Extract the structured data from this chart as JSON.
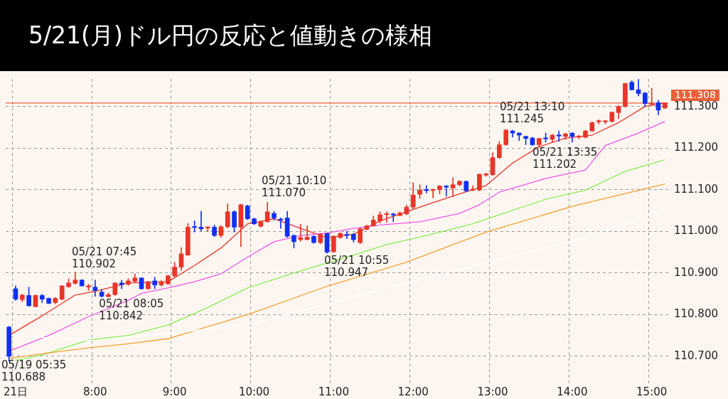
{
  "chart_data": {
    "type": "candlestick",
    "title": "5/21(月)ドル円の反応と値動きの様相",
    "categories": [
      null,
      "21日",
      null,
      null,
      null,
      null,
      null,
      null,
      null,
      null,
      null,
      null,
      null,
      "8:00",
      null,
      null,
      null,
      null,
      null,
      null,
      null,
      null,
      null,
      null,
      null,
      "9:00",
      null,
      null,
      null,
      null,
      null,
      null,
      null,
      null,
      null,
      null,
      null,
      "10:00",
      null,
      null,
      null,
      null,
      null,
      null,
      null,
      null,
      null,
      null,
      null,
      "11:00",
      null,
      null,
      null,
      null,
      null,
      null,
      null,
      null,
      null,
      null,
      null,
      "12:00",
      null,
      null,
      null,
      null,
      null,
      null,
      null,
      null,
      null,
      null,
      null,
      "13:00",
      null,
      null,
      null,
      null,
      null,
      null,
      null,
      null,
      null,
      null,
      null,
      "14:00",
      null,
      null,
      null,
      null,
      null,
      null,
      null,
      null,
      null,
      null,
      null,
      "15:00",
      null,
      null
    ],
    "ohlc": [
      [
        110.77,
        110.772,
        110.688,
        110.7
      ],
      [
        110.862,
        110.869,
        110.834,
        110.837
      ],
      [
        110.836,
        110.849,
        110.831,
        110.847
      ],
      [
        110.846,
        110.866,
        110.82,
        110.821
      ],
      [
        110.819,
        110.848,
        110.818,
        110.846
      ],
      [
        110.846,
        110.849,
        110.829,
        110.837
      ],
      [
        110.839,
        110.84,
        110.826,
        110.827
      ],
      [
        110.829,
        110.841,
        110.826,
        110.839
      ],
      [
        110.837,
        110.87,
        110.835,
        110.869
      ],
      [
        110.867,
        110.886,
        110.865,
        110.876
      ],
      [
        110.875,
        110.902,
        110.873,
        110.883
      ],
      [
        110.883,
        110.884,
        110.868,
        110.869
      ],
      [
        110.866,
        110.873,
        110.858,
        110.869
      ],
      [
        110.866,
        110.883,
        110.844,
        110.858
      ],
      [
        110.854,
        110.86,
        110.842,
        110.844
      ],
      [
        110.843,
        110.852,
        110.843,
        110.848
      ],
      [
        110.848,
        110.877,
        110.846,
        110.876
      ],
      [
        110.876,
        110.883,
        110.862,
        110.872
      ],
      [
        110.873,
        110.886,
        110.87,
        110.881
      ],
      [
        110.88,
        110.898,
        110.878,
        110.888
      ],
      [
        110.888,
        110.889,
        110.861,
        110.862
      ],
      [
        110.862,
        110.88,
        110.86,
        110.879
      ],
      [
        110.881,
        110.89,
        110.862,
        110.871
      ],
      [
        110.871,
        110.882,
        110.868,
        110.879
      ],
      [
        110.874,
        110.895,
        110.872,
        110.893
      ],
      [
        110.893,
        110.926,
        110.89,
        110.914
      ],
      [
        110.914,
        110.961,
        110.906,
        110.946
      ],
      [
        110.943,
        111.019,
        110.942,
        111.01
      ],
      [
        111.011,
        111.025,
        110.998,
        111.009
      ],
      [
        111.01,
        111.048,
        111.0,
        111.006
      ],
      [
        111.008,
        111.011,
        110.999,
        111.01
      ],
      [
        111.01,
        111.015,
        110.987,
        110.99
      ],
      [
        110.99,
        111.014,
        110.985,
        111.011
      ],
      [
        111.011,
        111.066,
        111.008,
        111.047
      ],
      [
        111.047,
        111.05,
        110.998,
        111.01
      ],
      [
        111.01,
        111.065,
        110.963,
        111.064
      ],
      [
        111.061,
        111.063,
        111.028,
        111.03
      ],
      [
        111.03,
        111.032,
        111.016,
        111.018
      ],
      [
        111.012,
        111.025,
        111.01,
        111.023
      ],
      [
        111.023,
        111.07,
        111.022,
        111.047
      ],
      [
        111.043,
        111.048,
        111.027,
        111.032
      ],
      [
        111.029,
        111.032,
        111.007,
        111.027
      ],
      [
        111.032,
        111.048,
        110.985,
        110.988
      ],
      [
        110.99,
        110.992,
        110.96,
        110.975
      ],
      [
        110.98,
        111.017,
        110.976,
        110.985
      ],
      [
        110.98,
        111.013,
        110.979,
        110.986
      ],
      [
        110.988,
        110.99,
        110.971,
        110.973
      ],
      [
        110.973,
        110.995,
        110.97,
        110.993
      ],
      [
        110.995,
        110.996,
        110.947,
        110.95
      ],
      [
        110.951,
        110.99,
        110.949,
        110.988
      ],
      [
        110.985,
        110.997,
        110.983,
        110.995
      ],
      [
        110.992,
        111.0,
        110.982,
        110.99
      ],
      [
        110.993,
        110.995,
        110.974,
        110.98
      ],
      [
        110.973,
        111.008,
        110.97,
        111.006
      ],
      [
        111.005,
        111.015,
        111.003,
        111.013
      ],
      [
        111.013,
        111.037,
        111.012,
        111.027
      ],
      [
        111.025,
        111.047,
        111.02,
        111.04
      ],
      [
        111.04,
        111.047,
        111.022,
        111.042
      ],
      [
        111.041,
        111.044,
        111.023,
        111.039
      ],
      [
        111.038,
        111.047,
        111.037,
        111.044
      ],
      [
        111.042,
        111.063,
        111.04,
        111.058
      ],
      [
        111.058,
        111.117,
        111.053,
        111.087
      ],
      [
        111.089,
        111.112,
        111.079,
        111.099
      ],
      [
        111.1,
        111.11,
        111.092,
        111.098
      ],
      [
        111.098,
        111.102,
        111.08,
        111.1
      ],
      [
        111.1,
        111.11,
        111.09,
        111.109
      ],
      [
        111.109,
        111.11,
        111.084,
        111.106
      ],
      [
        111.104,
        111.129,
        111.084,
        111.112
      ],
      [
        111.112,
        111.122,
        111.109,
        111.12
      ],
      [
        111.12,
        111.121,
        111.095,
        111.097
      ],
      [
        111.099,
        111.109,
        111.097,
        111.101
      ],
      [
        111.099,
        111.138,
        111.097,
        111.137
      ],
      [
        111.135,
        111.14,
        111.132,
        111.138
      ],
      [
        111.136,
        111.189,
        111.134,
        111.177
      ],
      [
        111.177,
        111.216,
        111.175,
        111.208
      ],
      [
        111.208,
        111.245,
        111.206,
        111.243
      ],
      [
        111.241,
        111.243,
        111.226,
        111.236
      ],
      [
        111.236,
        111.237,
        111.218,
        111.231
      ],
      [
        111.228,
        111.229,
        111.208,
        111.223
      ],
      [
        111.224,
        111.226,
        111.206,
        111.208
      ],
      [
        111.208,
        111.224,
        111.202,
        111.223
      ],
      [
        111.223,
        111.236,
        111.214,
        111.222
      ],
      [
        111.221,
        111.233,
        111.214,
        111.231
      ],
      [
        111.23,
        111.241,
        111.216,
        111.229
      ],
      [
        111.228,
        111.236,
        111.22,
        111.234
      ],
      [
        111.236,
        111.237,
        111.214,
        111.228
      ],
      [
        111.226,
        111.231,
        111.222,
        111.227
      ],
      [
        111.226,
        111.243,
        111.224,
        111.241
      ],
      [
        111.241,
        111.263,
        111.24,
        111.261
      ],
      [
        111.263,
        111.268,
        111.258,
        111.264
      ],
      [
        111.263,
        111.266,
        111.258,
        111.265
      ],
      [
        111.264,
        111.287,
        111.262,
        111.286
      ],
      [
        111.285,
        111.302,
        111.27,
        111.3
      ],
      [
        111.3,
        111.356,
        111.298,
        111.355
      ],
      [
        111.358,
        111.362,
        111.339,
        111.34
      ],
      [
        111.34,
        111.365,
        111.325,
        111.331
      ],
      [
        111.332,
        111.334,
        111.3,
        111.307
      ],
      [
        111.305,
        111.344,
        111.304,
        111.307
      ],
      [
        111.309,
        111.315,
        111.28,
        111.291
      ],
      [
        111.296,
        111.309,
        111.295,
        111.308
      ]
    ],
    "colors": [
      "#1030f0",
      "#1030f0",
      "#e8352a",
      "#1030f0",
      "#e8352a",
      "#1030f0",
      "#1030f0",
      "#e8352a",
      "#e8352a",
      "#e8352a",
      "#e8352a",
      "#1030f0",
      "#e8352a",
      "#1030f0",
      "#1030f0",
      "#e8352a",
      "#e8352a",
      "#1030f0",
      "#e8352a",
      "#e8352a",
      "#1030f0",
      "#e8352a",
      "#1030f0",
      "#e8352a",
      "#e8352a",
      "#e8352a",
      "#e8352a",
      "#e8352a",
      "#1030f0",
      "#1030f0",
      "#e8352a",
      "#1030f0",
      "#e8352a",
      "#e8352a",
      "#1030f0",
      "#e8352a",
      "#1030f0",
      "#1030f0",
      "#e8352a",
      "#e8352a",
      "#1030f0",
      "#1030f0",
      "#1030f0",
      "#1030f0",
      "#e8352a",
      "#e8352a",
      "#1030f0",
      "#e8352a",
      "#1030f0",
      "#e8352a",
      "#e8352a",
      "#1030f0",
      "#1030f0",
      "#e8352a",
      "#e8352a",
      "#e8352a",
      "#e8352a",
      "#e8352a",
      "#1030f0",
      "#e8352a",
      "#e8352a",
      "#e8352a",
      "#e8352a",
      "#1030f0",
      "#e8352a",
      "#e8352a",
      "#1030f0",
      "#e8352a",
      "#e8352a",
      "#1030f0",
      "#e8352a",
      "#e8352a",
      "#e8352a",
      "#e8352a",
      "#e8352a",
      "#e8352a",
      "#1030f0",
      "#1030f0",
      "#1030f0",
      "#1030f0",
      "#e8352a",
      "#1030f0",
      "#e8352a",
      "#1030f0",
      "#e8352a",
      "#1030f0",
      "#e8352a",
      "#e8352a",
      "#e8352a",
      "#e8352a",
      "#e8352a",
      "#e8352a",
      "#e8352a",
      "#e8352a",
      "#1030f0",
      "#1030f0",
      "#1030f0",
      "#e8352a",
      "#1030f0",
      "#e8352a"
    ],
    "series": [
      {
        "type": "line",
        "color": "#ffffff",
        "values": [
          110.75,
          null,
          null,
          null,
          null,
          null,
          null,
          null,
          null,
          null,
          null,
          null,
          null,
          110.737,
          null,
          null,
          null,
          null,
          null,
          null,
          null,
          null,
          null,
          null,
          null,
          null,
          null,
          null,
          null,
          null,
          null,
          null,
          null,
          null,
          null,
          null,
          110.775,
          null,
          null,
          null,
          null,
          null,
          null,
          null,
          null,
          null,
          null,
          null,
          null,
          null,
          null,
          null,
          null,
          null,
          null,
          null,
          null,
          null,
          null,
          null,
          110.876,
          null,
          null,
          null,
          null,
          null,
          null,
          null,
          null,
          null,
          null,
          null,
          null,
          null,
          null,
          null,
          null,
          null,
          null,
          null,
          null,
          null,
          null,
          null,
          null,
          110.976,
          null,
          null,
          null,
          null,
          null,
          null,
          null,
          null,
          null,
          null,
          null,
          null,
          null,
          111.052
        ]
      },
      {
        "type": "line",
        "color": "#f5a030",
        "values": [
          110.695,
          null,
          null,
          null,
          null,
          null,
          110.708,
          null,
          null,
          null,
          null,
          null,
          110.72,
          null,
          null,
          null,
          null,
          null,
          110.73,
          null,
          null,
          null,
          null,
          null,
          110.742,
          null,
          null,
          null,
          null,
          null,
          null,
          null,
          null,
          null,
          null,
          null,
          110.8,
          null,
          null,
          null,
          null,
          null,
          null,
          null,
          null,
          null,
          null,
          null,
          110.868,
          null,
          null,
          null,
          null,
          null,
          null,
          null,
          null,
          null,
          null,
          null,
          110.926,
          null,
          null,
          null,
          null,
          null,
          null,
          null,
          null,
          null,
          null,
          null,
          110.998,
          null,
          null,
          null,
          null,
          null,
          null,
          null,
          null,
          null,
          null,
          null,
          null,
          111.06,
          null,
          null,
          null,
          null,
          null,
          null,
          null,
          null,
          null,
          null,
          null,
          null,
          null,
          111.114
        ]
      },
      {
        "type": "line",
        "color": "#88ee55",
        "values": [
          null,
          110.69,
          null,
          null,
          null,
          110.703,
          null,
          null,
          null,
          null,
          null,
          null,
          110.739,
          null,
          null,
          null,
          null,
          null,
          110.75,
          null,
          null,
          null,
          null,
          null,
          110.775,
          null,
          null,
          null,
          null,
          null,
          110.817,
          null,
          null,
          null,
          null,
          null,
          110.864,
          null,
          null,
          null,
          null,
          null,
          null,
          null,
          110.905,
          null,
          null,
          null,
          null,
          null,
          null,
          null,
          110.943,
          null,
          null,
          null,
          null,
          110.968,
          null,
          null,
          null,
          null,
          null,
          110.99,
          null,
          null,
          null,
          null,
          null,
          null,
          111.018,
          null,
          null,
          null,
          111.04,
          null,
          null,
          null,
          null,
          null,
          null,
          111.077,
          null,
          null,
          null,
          null,
          null,
          111.099,
          null,
          null,
          null,
          null,
          null,
          111.144,
          null,
          null,
          null,
          null,
          null,
          111.172
        ]
      },
      {
        "type": "line",
        "color": "#ee55ee",
        "values": [
          110.712,
          null,
          null,
          null,
          null,
          null,
          110.75,
          null,
          null,
          null,
          null,
          null,
          110.795,
          null,
          null,
          null,
          null,
          null,
          110.834,
          null,
          110.851,
          null,
          null,
          null,
          110.864,
          null,
          null,
          null,
          110.879,
          null,
          null,
          null,
          110.898,
          null,
          null,
          null,
          110.938,
          null,
          null,
          null,
          110.975,
          null,
          null,
          null,
          110.99,
          null,
          null,
          null,
          110.996,
          null,
          null,
          null,
          111.007,
          null,
          null,
          null,
          111.015,
          null,
          null,
          null,
          null,
          null,
          111.023,
          null,
          null,
          null,
          null,
          null,
          111.043,
          null,
          null,
          111.064,
          null,
          null,
          111.094,
          null,
          null,
          null,
          null,
          null,
          null,
          111.127,
          null,
          null,
          null,
          null,
          null,
          111.147,
          null,
          null,
          111.206,
          null,
          null,
          null,
          null,
          111.236,
          null,
          null,
          null,
          111.264
        ]
      },
      {
        "type": "line",
        "color": "#e8352a",
        "values": [
          110.75,
          null,
          null,
          null,
          null,
          110.797,
          null,
          null,
          null,
          null,
          110.847,
          null,
          null,
          110.856,
          null,
          null,
          null,
          null,
          110.876,
          null,
          null,
          null,
          null,
          null,
          110.879,
          null,
          null,
          null,
          110.918,
          null,
          null,
          null,
          110.96,
          null,
          null,
          null,
          111.018,
          null,
          null,
          null,
          111.03,
          null,
          null,
          null,
          111.007,
          null,
          null,
          null,
          110.985,
          null,
          null,
          null,
          110.993,
          null,
          null,
          null,
          111.025,
          null,
          null,
          null,
          111.047,
          null,
          null,
          null,
          111.069,
          null,
          null,
          null,
          111.09,
          null,
          null,
          null,
          111.11,
          null,
          null,
          null,
          111.164,
          null,
          null,
          null,
          111.203,
          null,
          null,
          null,
          111.224,
          null,
          null,
          null,
          111.231,
          null,
          null,
          null,
          111.261,
          null,
          null,
          null,
          111.3,
          null,
          null,
          111.308
        ]
      }
    ],
    "ylim": [
      110.628,
      111.366
    ],
    "yticks": [
      {
        "value": 110.7,
        "label": "110.700"
      },
      {
        "value": 110.8,
        "label": "110.800"
      },
      {
        "value": 110.9,
        "label": "110.900"
      },
      {
        "value": 111.0,
        "label": "111.000"
      },
      {
        "value": 111.1,
        "label": "111.100"
      },
      {
        "value": 111.2,
        "label": "111.200"
      },
      {
        "value": 111.3,
        "label": "111.300"
      }
    ],
    "grid": true,
    "ref_lines": [
      {
        "axis": "y",
        "value": 111.308,
        "label": "111.308",
        "color": "#e8603a"
      }
    ],
    "annotations": [
      "05/19 05:35\n110.688",
      "05/21 07:45\n110.902",
      {
        "text": "05/21 08:05\n110.842",
        "y": 110.842
      },
      "05/21 10:10\n111.070",
      {
        "text": "05/21 10:55\n110.947",
        "y": 110.947
      },
      "05/21 13:10\n111.245",
      "05/21 13:35\n111.202"
    ]
  }
}
